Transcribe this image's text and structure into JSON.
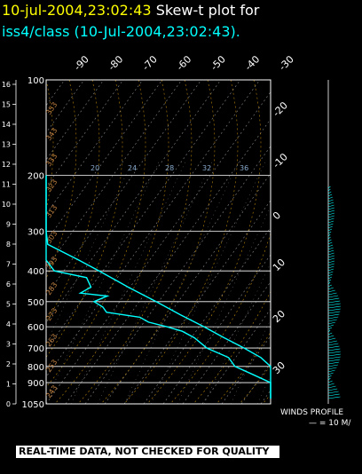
{
  "title": {
    "datetime": "10-jul-2004,23:02:43",
    "text": "Skew-t plot for",
    "subtitle": "iss4/class (10-Jul-2004,23:02:43)."
  },
  "banner": "REAL-TIME DATA, NOT CHECKED FOR QUALITY",
  "winds": {
    "label": "WINDS PROFILE",
    "scale": "— = 10 M/"
  },
  "chart_data": {
    "type": "line",
    "pressure_levels": [
      "100",
      "200",
      "300",
      "400",
      "500",
      "600",
      "700",
      "800",
      "900",
      "1050"
    ],
    "pressure_values": [
      100,
      200,
      300,
      400,
      500,
      600,
      700,
      800,
      900,
      1050
    ],
    "height_km_ticks": [
      "0",
      "1",
      "2",
      "3",
      "4",
      "5",
      "6",
      "7",
      "8",
      "9",
      "10",
      "11",
      "12",
      "13",
      "14",
      "15",
      "16"
    ],
    "temp_ticks_top": [
      "-90",
      "-80",
      "-70",
      "-60",
      "-50",
      "-40",
      "-30"
    ],
    "temp_ticks_right": [
      "-20",
      "-10",
      "0",
      "10",
      "20",
      "30"
    ],
    "theta_labels": [
      "353",
      "343",
      "333",
      "323",
      "313",
      "303",
      "293",
      "283",
      "273",
      "263",
      "253",
      "243"
    ],
    "mixing_ratio_labels": [
      "20",
      "24",
      "28",
      "32",
      "36"
    ],
    "series": [
      {
        "points": [
          [
            200,
            -57
          ],
          [
            210,
            -55
          ],
          [
            240,
            -56
          ],
          [
            270,
            -54
          ],
          [
            300,
            -47
          ],
          [
            330,
            -41
          ],
          [
            370,
            -33
          ],
          [
            400,
            -28
          ],
          [
            450,
            -21
          ],
          [
            500,
            -14
          ],
          [
            550,
            -8
          ],
          [
            600,
            -2
          ],
          [
            650,
            3
          ],
          [
            700,
            8
          ],
          [
            750,
            12
          ],
          [
            800,
            16
          ],
          [
            850,
            20
          ],
          [
            900,
            24
          ],
          [
            950,
            28
          ],
          [
            990,
            31
          ],
          [
            1010,
            30
          ]
        ],
        "color": "#00ffff"
      },
      {
        "points": [
          [
            200,
            -86
          ],
          [
            210,
            -78
          ],
          [
            230,
            -73
          ],
          [
            260,
            -72
          ],
          [
            290,
            -70
          ],
          [
            300,
            -63
          ],
          [
            330,
            -59
          ],
          [
            370,
            -56
          ],
          [
            400,
            -46
          ],
          [
            420,
            -35
          ],
          [
            450,
            -36
          ],
          [
            470,
            -42
          ],
          [
            480,
            -32
          ],
          [
            500,
            -39
          ],
          [
            520,
            -37
          ],
          [
            540,
            -37
          ],
          [
            560,
            -25
          ],
          [
            580,
            -23
          ],
          [
            600,
            -17
          ],
          [
            620,
            -12
          ],
          [
            650,
            -9
          ],
          [
            700,
            -7
          ],
          [
            750,
            -1
          ],
          [
            800,
            -1
          ],
          [
            850,
            4
          ],
          [
            900,
            9
          ],
          [
            930,
            16
          ],
          [
            950,
            28
          ],
          [
            990,
            30
          ],
          [
            1010,
            29
          ]
        ],
        "color": "#00ffff"
      }
    ]
  }
}
